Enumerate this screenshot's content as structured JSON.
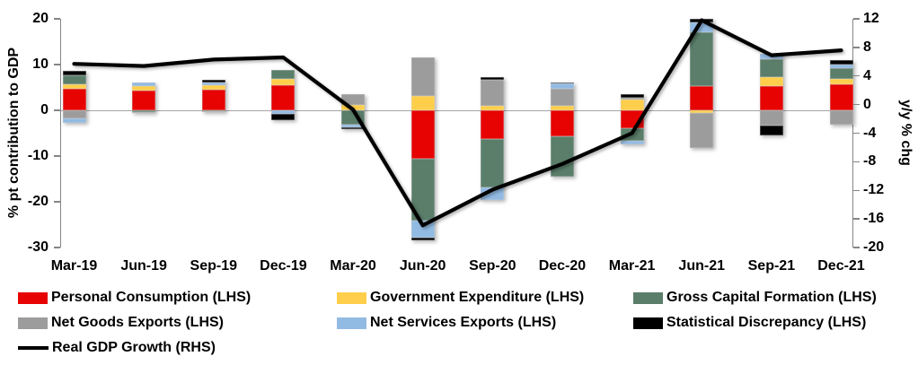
{
  "chart_data": {
    "type": "combo-stacked-bar-line",
    "title": "",
    "categories": [
      "Mar-19",
      "Jun-19",
      "Sep-19",
      "Dec-19",
      "Mar-20",
      "Jun-20",
      "Sep-20",
      "Dec-20",
      "Mar-21",
      "Jun-21",
      "Sep-21",
      "Dec-21"
    ],
    "bar_series": [
      {
        "name": "Personal Consumption (LHS)",
        "color": "#e60302",
        "values": [
          4.7,
          4.3,
          4.5,
          5.4,
          0.0,
          -10.6,
          -6.2,
          -5.6,
          -4.0,
          5.2,
          5.3,
          5.6
        ]
      },
      {
        "name": "Government Expenditure (LHS)",
        "color": "#ffcf4b",
        "values": [
          1.0,
          1.0,
          0.9,
          1.5,
          1.2,
          3.2,
          0.9,
          0.9,
          2.3,
          -0.6,
          2.0,
          1.3
        ]
      },
      {
        "name": "Gross Capital Formation (LHS)",
        "color": "#5a7e6a",
        "values": [
          2.0,
          -0.3,
          -0.2,
          2.0,
          -3.2,
          -13.6,
          -10.6,
          -9.0,
          -2.7,
          11.9,
          3.9,
          2.3
        ]
      },
      {
        "name": "Net Goods Exports (LHS)",
        "color": "#9c9c9c",
        "values": [
          -1.7,
          -0.2,
          -0.2,
          0.0,
          2.3,
          8.4,
          5.7,
          3.8,
          0.4,
          -7.6,
          -3.4,
          -3.2
        ]
      },
      {
        "name": "Net Services Exports (LHS)",
        "color": "#92bbe3",
        "values": [
          -1.1,
          0.8,
          0.6,
          -0.8,
          -0.6,
          -3.6,
          -2.8,
          1.1,
          -0.7,
          2.1,
          1.1,
          0.8
        ]
      },
      {
        "name": "Statistical Discrepancy (LHS)",
        "color": "#000000",
        "values": [
          1.0,
          0.0,
          0.7,
          -1.4,
          -0.4,
          -0.7,
          0.6,
          0.3,
          0.8,
          0.8,
          -2.0,
          1.0
        ]
      }
    ],
    "line_series": {
      "name": "Real GDP Growth (RHS)",
      "color": "#000000",
      "values": [
        5.7,
        5.4,
        6.3,
        6.6,
        -0.7,
        -16.9,
        -11.9,
        -8.3,
        -4.0,
        11.8,
        6.9,
        7.6
      ]
    },
    "left_axis": {
      "title": "% pt contribution to GDP",
      "min": -30,
      "max": 20,
      "ticks": [
        20,
        10,
        0,
        -10,
        -20,
        -30
      ]
    },
    "right_axis": {
      "title": "y/y % chg",
      "min": -20,
      "max": 12,
      "ticks": [
        12,
        8,
        4,
        0,
        -4,
        -8,
        -12,
        -16,
        -20
      ]
    },
    "grid": "zero-line-only",
    "legend_position": "bottom",
    "zero_line_color": "#a6a6a6",
    "axis_color": "#858585"
  }
}
